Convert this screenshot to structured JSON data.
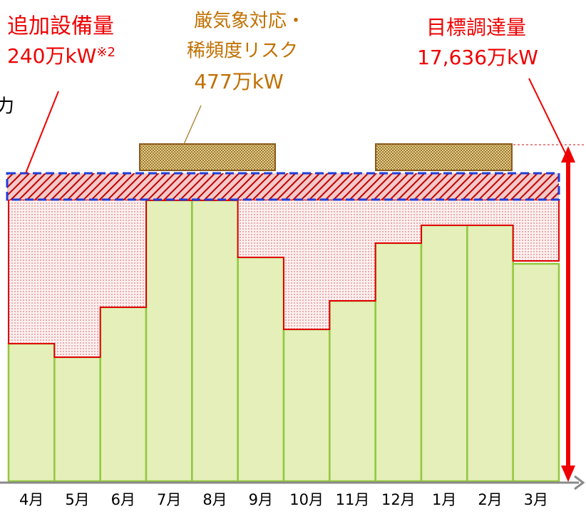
{
  "labels": {
    "added": {
      "title": "追加設備量",
      "amount": "240万kW",
      "note": "※2"
    },
    "risk": {
      "line1": "厳気象対応・",
      "line2": "稀頻度リスク",
      "amount": "477万kW"
    },
    "target": {
      "title": "目標調達量",
      "amount": "17,636万kW"
    },
    "cut": "力"
  },
  "months": [
    "4月",
    "5月",
    "6月",
    "7月",
    "8月",
    "9月",
    "10月",
    "11月",
    "12月",
    "1月",
    "2月",
    "3月"
  ]
}
